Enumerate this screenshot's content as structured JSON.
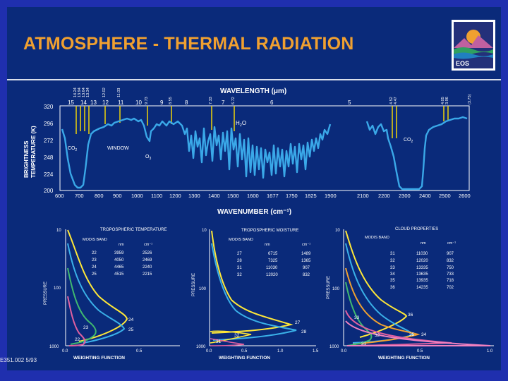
{
  "slide": {
    "title": "ATMOSPHERE - THERMAL RADIATION",
    "logo_text": "EOS",
    "footer_code": "E351.002  5/93"
  },
  "main_spectrum": {
    "top_axis_label": "WAVELENGTH (μm)",
    "bottom_axis_label": "WAVENUMBER (cm⁻¹)",
    "y_axis_label_line1": "BRIGHTNESS",
    "y_axis_label_line2": "TEMPERATURE (K)",
    "y_ticks": [
      "320",
      "296",
      "272",
      "248",
      "224",
      "200"
    ],
    "x_ticks": [
      "600",
      "700",
      "800",
      "900",
      "1000",
      "1100",
      "1200",
      "1300",
      "1400",
      "1500",
      "1600",
      "1677",
      "1750",
      "1825",
      "1900",
      "2100",
      "2200",
      "2300",
      "2400",
      "2500",
      "2600"
    ],
    "top_ticks": [
      "15",
      "14",
      "13",
      "12",
      "11",
      "10",
      "9",
      "8",
      "7",
      "6",
      "5"
    ],
    "band_labels": [
      "14.24",
      "13.94",
      "13.64",
      "13.34",
      "12.02",
      "11.03",
      "9.73",
      "8.55",
      "7.33",
      "6.72",
      "4.52",
      "4.47",
      "4.05",
      "3.96",
      "(3.75)"
    ],
    "annotations": {
      "co2_left": "CO",
      "co2_left_sub": "2",
      "window": "WINDOW",
      "o3": "O",
      "o3_sub": "3",
      "h2o": "H",
      "h2o_sub": "2",
      "h2o_end": "O",
      "co2_right": "CO",
      "co2_right_sub": "2"
    },
    "colors": {
      "spectrum": "#3aa8e8",
      "band_marker": "#ffe000",
      "axes": "#ffffff"
    }
  },
  "panels": [
    {
      "title": "TROPOSPHERIC TEMPERATURE",
      "table_headers": [
        "MODIS BAND",
        "nm",
        "cm⁻¹"
      ],
      "rows": [
        [
          "22",
          "3959",
          "2526"
        ],
        [
          "23",
          "4050",
          "2469"
        ],
        [
          "24",
          "4465",
          "2240"
        ],
        [
          "25",
          "4515",
          "2215"
        ]
      ],
      "x_ticks": [
        "0.0",
        "0.5"
      ],
      "y_ticks": [
        "10",
        "100",
        "1000"
      ],
      "curve_labels": [
        "24",
        "25",
        "23",
        "22"
      ],
      "y_label": "PRESSURE",
      "x_label": "WEIGHTING FUNCTION"
    },
    {
      "title": "TROPOSPHERIC MOISTURE",
      "table_headers": [
        "MODIS BAND",
        "nm",
        "cm⁻¹"
      ],
      "rows": [
        [
          "27",
          "6715",
          "1489"
        ],
        [
          "28",
          "7325",
          "1365"
        ],
        [
          "31",
          "11030",
          "907"
        ],
        [
          "32",
          "12020",
          "832"
        ]
      ],
      "x_ticks": [
        "0.0",
        "0.5",
        "1.0",
        "1.5"
      ],
      "y_ticks": [
        "10",
        "100",
        "1000"
      ],
      "curve_labels": [
        "27",
        "28",
        "32",
        "31"
      ],
      "y_label": "PRESSURE",
      "x_label": "WEIGHTING FUNCTION"
    },
    {
      "title": "CLOUD PROPERTIES",
      "table_headers": [
        "MODIS BAND",
        "nm",
        "cm⁻¹"
      ],
      "rows": [
        [
          "31",
          "11030",
          "907"
        ],
        [
          "32",
          "12020",
          "832"
        ],
        [
          "33",
          "13335",
          "750"
        ],
        [
          "34",
          "13635",
          "733"
        ],
        [
          "35",
          "13935",
          "718"
        ],
        [
          "36",
          "14235",
          "702"
        ]
      ],
      "x_ticks": [
        "0.0",
        "0.5",
        "1.0"
      ],
      "y_ticks": [
        "10",
        "100",
        "1000"
      ],
      "curve_labels": [
        "36",
        "33",
        "32",
        "35",
        "34",
        "31"
      ],
      "y_label": "PRESSURE",
      "x_label": "WEIGHTING FUNCTION"
    }
  ]
}
